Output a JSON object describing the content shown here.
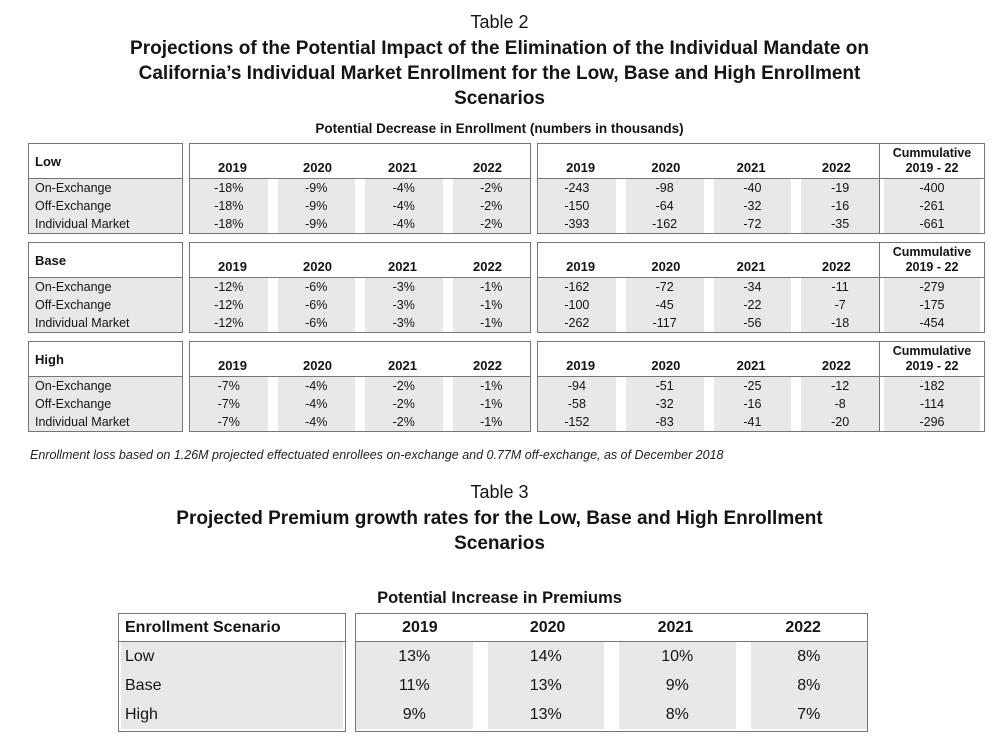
{
  "colors": {
    "row_shade": "#e8e8e8",
    "table_border": "#767676",
    "background": "#ffffff"
  },
  "years": [
    "2019",
    "2020",
    "2021",
    "2022"
  ],
  "table2": {
    "label": "Table 2",
    "title_lines": [
      "Projections of the Potential Impact of the Elimination of the Individual Mandate on",
      "California’s Individual Market Enrollment for the Low, Base and High Enrollment",
      "Scenarios"
    ],
    "subtitle": "Potential Decrease in Enrollment (numbers in thousands)",
    "cumulative_header_line1": "Cummulative",
    "cumulative_header_line2": "2019 - 22",
    "bands": [
      {
        "scenario": "Low",
        "rows": [
          {
            "label": "On-Exchange",
            "pct": [
              "-18%",
              "-9%",
              "-4%",
              "-2%"
            ],
            "num": [
              "-243",
              "-98",
              "-40",
              "-19"
            ],
            "cum": "-400"
          },
          {
            "label": "Off-Exchange",
            "pct": [
              "-18%",
              "-9%",
              "-4%",
              "-2%"
            ],
            "num": [
              "-150",
              "-64",
              "-32",
              "-16"
            ],
            "cum": "-261"
          },
          {
            "label": "Individual Market",
            "pct": [
              "-18%",
              "-9%",
              "-4%",
              "-2%"
            ],
            "num": [
              "-393",
              "-162",
              "-72",
              "-35"
            ],
            "cum": "-661"
          }
        ]
      },
      {
        "scenario": "Base",
        "rows": [
          {
            "label": "On-Exchange",
            "pct": [
              "-12%",
              "-6%",
              "-3%",
              "-1%"
            ],
            "num": [
              "-162",
              "-72",
              "-34",
              "-11"
            ],
            "cum": "-279"
          },
          {
            "label": "Off-Exchange",
            "pct": [
              "-12%",
              "-6%",
              "-3%",
              "-1%"
            ],
            "num": [
              "-100",
              "-45",
              "-22",
              "-7"
            ],
            "cum": "-175"
          },
          {
            "label": "Individual Market",
            "pct": [
              "-12%",
              "-6%",
              "-3%",
              "-1%"
            ],
            "num": [
              "-262",
              "-117",
              "-56",
              "-18"
            ],
            "cum": "-454"
          }
        ]
      },
      {
        "scenario": "High",
        "rows": [
          {
            "label": "On-Exchange",
            "pct": [
              "-7%",
              "-4%",
              "-2%",
              "-1%"
            ],
            "num": [
              "-94",
              "-51",
              "-25",
              "-12"
            ],
            "cum": "-182"
          },
          {
            "label": "Off-Exchange",
            "pct": [
              "-7%",
              "-4%",
              "-2%",
              "-1%"
            ],
            "num": [
              "-58",
              "-32",
              "-16",
              "-8"
            ],
            "cum": "-114"
          },
          {
            "label": "Individual Market",
            "pct": [
              "-7%",
              "-4%",
              "-2%",
              "-1%"
            ],
            "num": [
              "-152",
              "-83",
              "-41",
              "-20"
            ],
            "cum": "-296"
          }
        ]
      }
    ],
    "footnote": "Enrollment loss based on 1.26M projected effectuated enrollees on-exchange and 0.77M off-exchange, as of December 2018"
  },
  "table3": {
    "label": "Table 3",
    "title_lines": [
      "Projected Premium growth rates for the Low, Base and High Enrollment",
      "Scenarios"
    ],
    "subtitle": "Potential Increase in Premiums",
    "scenario_header": "Enrollment Scenario",
    "rows": [
      {
        "label": "Low",
        "values": [
          "13%",
          "14%",
          "10%",
          "8%"
        ]
      },
      {
        "label": "Base",
        "values": [
          "11%",
          "13%",
          "9%",
          "8%"
        ]
      },
      {
        "label": "High",
        "values": [
          "9%",
          "13%",
          "8%",
          "7%"
        ]
      }
    ]
  }
}
